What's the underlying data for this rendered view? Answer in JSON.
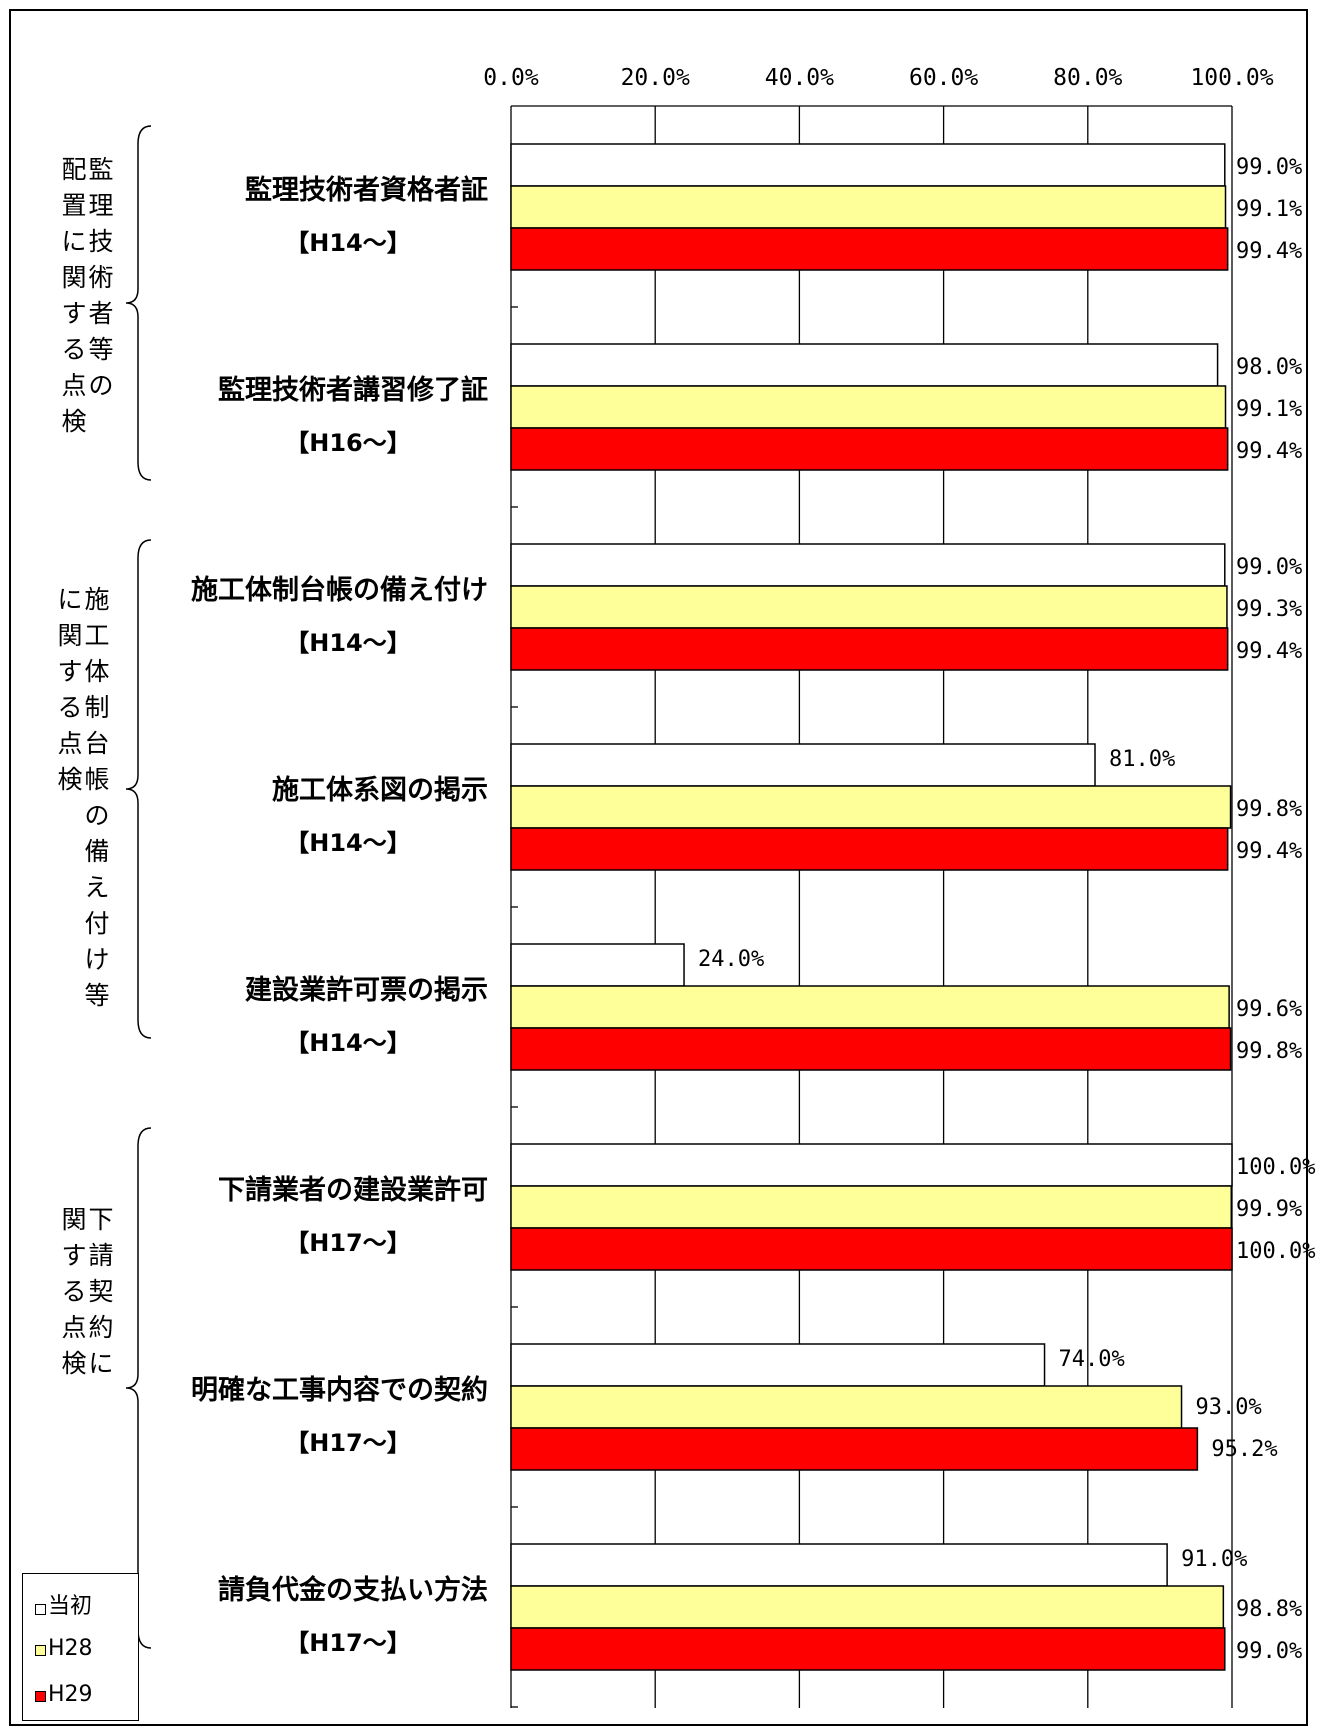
{
  "chart_data": {
    "type": "bar",
    "orientation": "horizontal",
    "xlim": [
      0,
      100
    ],
    "x_ticks": [
      "0.0%",
      "20.0%",
      "40.0%",
      "60.0%",
      "80.0%",
      "100.0%"
    ],
    "grid": "vertical",
    "legend_position": "bottom-left",
    "categories": [
      {
        "label": "監理技術者資格者証",
        "sub": "【H14～】"
      },
      {
        "label": "監理技術者講習修了証",
        "sub": "【H16～】"
      },
      {
        "label": "施工体制台帳の備え付け",
        "sub": "【H14～】"
      },
      {
        "label": "施工体系図の掲示",
        "sub": "【H14～】"
      },
      {
        "label": "建設業許可票の掲示",
        "sub": "【H14～】"
      },
      {
        "label": "下請業者の建設業許可",
        "sub": "【H17～】"
      },
      {
        "label": "明確な工事内容での契約",
        "sub": "【H17～】"
      },
      {
        "label": "請負代金の支払い方法",
        "sub": "【H17～】"
      }
    ],
    "groups": [
      {
        "label": "監理技術者等の配置に関する点検",
        "columns": [
          "監理技術者等の",
          "配置に関する点検"
        ]
      },
      {
        "label": "施工体制台帳の備え付け等に関する点検",
        "columns": [
          "施工体制台帳の備え付け等",
          "に関する点検"
        ]
      },
      {
        "label": "下請契約に関する点検",
        "columns": [
          "下請契約に",
          "関する点検"
        ]
      }
    ],
    "series": [
      {
        "name": "当初",
        "color": "#ffffff",
        "values": [
          99.0,
          98.0,
          99.0,
          81.0,
          24.0,
          100.0,
          74.0,
          91.0
        ],
        "labels": [
          "99.0%",
          "98.0%",
          "99.0%",
          "81.0%",
          "24.0%",
          "100.0%",
          "74.0%",
          "91.0%"
        ]
      },
      {
        "name": "H28",
        "color": "#ffff99",
        "values": [
          99.1,
          99.1,
          99.3,
          99.8,
          99.6,
          99.9,
          93.0,
          98.8
        ],
        "labels": [
          "99.1%",
          "99.1%",
          "99.3%",
          "99.8%",
          "99.6%",
          "99.9%",
          "93.0%",
          "98.8%"
        ]
      },
      {
        "name": "H29",
        "color": "#ff0000",
        "values": [
          99.4,
          99.4,
          99.4,
          99.4,
          99.8,
          100.0,
          95.2,
          99.0
        ],
        "labels": [
          "99.4%",
          "99.4%",
          "99.4%",
          "99.4%",
          "99.8%",
          "100.0%",
          "95.2%",
          "99.0%"
        ]
      }
    ]
  }
}
